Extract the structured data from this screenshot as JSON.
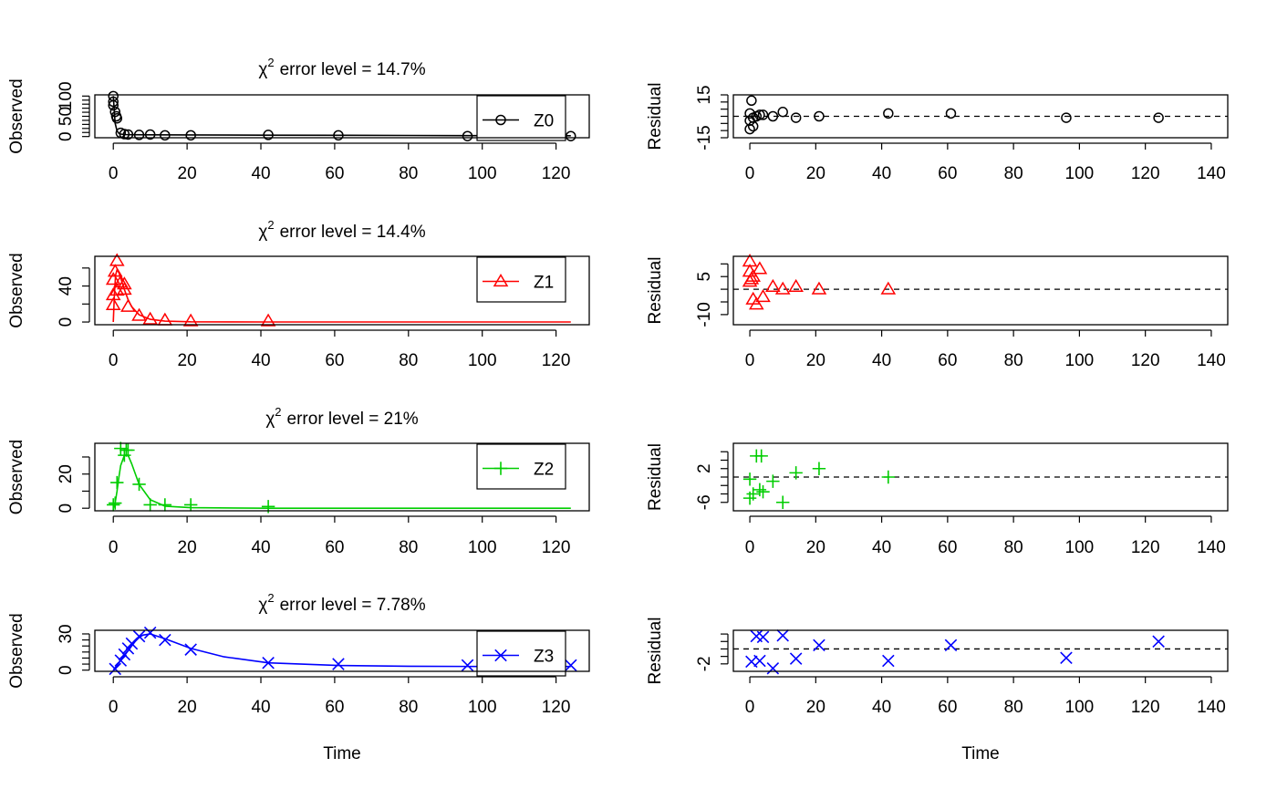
{
  "chart_data": [
    {
      "type": "scatter",
      "panel": "observed",
      "title_prefix": "χ",
      "title_exponent": "2",
      "title_text": "error level = 14.7%",
      "ylabel": "Observed",
      "xlabel": "",
      "xlim": [
        -5,
        129
      ],
      "ylim": [
        -3,
        103
      ],
      "xticks": [
        0,
        20,
        40,
        60,
        80,
        100,
        120
      ],
      "yticks_labeled": [
        0,
        50,
        100
      ],
      "yticks_minor": [
        10,
        20,
        30,
        40,
        60,
        70,
        80,
        90
      ],
      "legend": "Z0",
      "legend_position": "top-right",
      "color": "#000000",
      "marker": "circle",
      "series": [
        {
          "name": "Z0",
          "points": [
            [
              0,
              100
            ],
            [
              0,
              86
            ],
            [
              0,
              77
            ],
            [
              0.5,
              61
            ],
            [
              0.8,
              50
            ],
            [
              1,
              45
            ],
            [
              2,
              9
            ],
            [
              3,
              6
            ],
            [
              4,
              5
            ],
            [
              7,
              4
            ],
            [
              10,
              5
            ],
            [
              14,
              3
            ],
            [
              21,
              3
            ],
            [
              42,
              4
            ],
            [
              61,
              3
            ],
            [
              96,
              1
            ],
            [
              124,
              1
            ]
          ],
          "fit": [
            [
              0,
              100
            ],
            [
              0.5,
              33
            ],
            [
              1,
              14
            ],
            [
              1.5,
              8
            ],
            [
              2,
              6
            ],
            [
              3,
              5
            ],
            [
              5,
              4.5
            ],
            [
              10,
              4.2
            ],
            [
              20,
              3.9
            ],
            [
              40,
              3.4
            ],
            [
              60,
              3
            ],
            [
              80,
              2.6
            ],
            [
              100,
              2.3
            ],
            [
              124,
              2
            ]
          ]
        }
      ]
    },
    {
      "type": "scatter",
      "panel": "residual",
      "ylabel": "Residual",
      "xlabel": "",
      "xlim": [
        -5,
        145
      ],
      "ylim": [
        -15,
        15
      ],
      "xticks": [
        0,
        20,
        40,
        60,
        80,
        100,
        120,
        140
      ],
      "yticks_labeled": [
        -15,
        15
      ],
      "yticks_minor": [
        -10,
        -5,
        0,
        5,
        10
      ],
      "hline": 0,
      "color": "#000000",
      "marker": "circle",
      "series": [
        {
          "name": "Z0",
          "points": [
            [
              0,
              2
            ],
            [
              0,
              -3
            ],
            [
              0,
              -9
            ],
            [
              0.5,
              11
            ],
            [
              1,
              -7
            ],
            [
              1,
              -1
            ],
            [
              2,
              0
            ],
            [
              3,
              1
            ],
            [
              4,
              1
            ],
            [
              7,
              0
            ],
            [
              10,
              3
            ],
            [
              14,
              -1
            ],
            [
              21,
              0
            ],
            [
              42,
              2
            ],
            [
              61,
              2
            ],
            [
              96,
              -1
            ],
            [
              124,
              -1
            ]
          ]
        }
      ]
    },
    {
      "type": "scatter",
      "panel": "observed",
      "title_prefix": "χ",
      "title_exponent": "2",
      "title_text": "error level = 14.4%",
      "ylabel": "Observed",
      "xlabel": "",
      "xlim": [
        -5,
        129
      ],
      "ylim": [
        -3,
        73
      ],
      "xticks": [
        0,
        20,
        40,
        60,
        80,
        100,
        120
      ],
      "yticks_labeled": [
        0,
        40
      ],
      "yticks_minor": [
        20,
        60
      ],
      "legend": "Z1",
      "legend_position": "top-right",
      "color": "#ff0000",
      "marker": "triangle",
      "series": [
        {
          "name": "Z1",
          "points": [
            [
              0,
              19
            ],
            [
              0,
              30
            ],
            [
              0,
              47
            ],
            [
              0.5,
              56
            ],
            [
              1,
              35
            ],
            [
              1,
              68
            ],
            [
              2,
              44
            ],
            [
              3,
              36
            ],
            [
              3,
              42
            ],
            [
              4,
              17
            ],
            [
              7,
              7
            ],
            [
              10,
              3
            ],
            [
              14,
              2
            ],
            [
              21,
              1
            ],
            [
              42,
              1
            ]
          ],
          "fit": [
            [
              0,
              0
            ],
            [
              0.3,
              30
            ],
            [
              0.6,
              52
            ],
            [
              1,
              58
            ],
            [
              1.5,
              55
            ],
            [
              2,
              49
            ],
            [
              3,
              36
            ],
            [
              4,
              25
            ],
            [
              5,
              17
            ],
            [
              7,
              8
            ],
            [
              10,
              3
            ],
            [
              14,
              1
            ],
            [
              21,
              0.2
            ],
            [
              42,
              0
            ],
            [
              124,
              0
            ]
          ]
        }
      ]
    },
    {
      "type": "scatter",
      "panel": "residual",
      "ylabel": "Residual",
      "xlabel": "",
      "xlim": [
        -5,
        145
      ],
      "ylim": [
        -14,
        13
      ],
      "xticks": [
        0,
        20,
        40,
        60,
        80,
        100,
        120,
        140
      ],
      "yticks_labeled": [
        -10,
        5
      ],
      "yticks_minor": [
        -5,
        0,
        10
      ],
      "hline": 0,
      "color": "#ff0000",
      "marker": "triangle",
      "series": [
        {
          "name": "Z1",
          "points": [
            [
              0,
              11
            ],
            [
              0,
              7
            ],
            [
              0,
              3
            ],
            [
              0.5,
              4
            ],
            [
              1,
              -4
            ],
            [
              1,
              5
            ],
            [
              2,
              -6
            ],
            [
              3,
              8
            ],
            [
              4,
              -3
            ],
            [
              7,
              1
            ],
            [
              10,
              0
            ],
            [
              14,
              1
            ],
            [
              21,
              0
            ],
            [
              42,
              0
            ]
          ]
        }
      ]
    },
    {
      "type": "scatter",
      "panel": "observed",
      "title_prefix": "χ",
      "title_exponent": "2",
      "title_text": "error level = 21%",
      "ylabel": "Observed",
      "xlabel": "",
      "xlim": [
        -5,
        129
      ],
      "ylim": [
        -1.5,
        38
      ],
      "xticks": [
        0,
        20,
        40,
        60,
        80,
        100,
        120
      ],
      "yticks_labeled": [
        0,
        20
      ],
      "yticks_minor": [
        10,
        30
      ],
      "legend": "Z2",
      "legend_position": "top-right",
      "color": "#00cd00",
      "marker": "plus",
      "series": [
        {
          "name": "Z2",
          "points": [
            [
              0,
              2
            ],
            [
              0.5,
              3
            ],
            [
              1,
              15
            ],
            [
              2,
              35
            ],
            [
              3,
              31
            ],
            [
              3.5,
              34
            ],
            [
              4,
              34
            ],
            [
              7,
              14
            ],
            [
              10,
              2
            ],
            [
              14,
              2
            ],
            [
              21,
              2
            ],
            [
              42,
              1
            ]
          ],
          "fit": [
            [
              0,
              0
            ],
            [
              0.5,
              3
            ],
            [
              1,
              10
            ],
            [
              1.5,
              18
            ],
            [
              2,
              25
            ],
            [
              3,
              31
            ],
            [
              4,
              31
            ],
            [
              5,
              26
            ],
            [
              7,
              14
            ],
            [
              10,
              5
            ],
            [
              14,
              1.2
            ],
            [
              21,
              0.3
            ],
            [
              42,
              0
            ],
            [
              124,
              0
            ]
          ]
        }
      ]
    },
    {
      "type": "scatter",
      "panel": "residual",
      "ylabel": "Residual",
      "xlabel": "",
      "xlim": [
        -5,
        145
      ],
      "ylim": [
        -8,
        8
      ],
      "xticks": [
        0,
        20,
        40,
        60,
        80,
        100,
        120,
        140
      ],
      "yticks_labeled": [
        -6,
        2
      ],
      "yticks_minor": [
        -4,
        -2,
        0,
        4,
        6
      ],
      "hline": 0,
      "color": "#00cd00",
      "marker": "plus",
      "series": [
        {
          "name": "Z2",
          "points": [
            [
              0,
              -0.5
            ],
            [
              0,
              -5
            ],
            [
              1,
              -4
            ],
            [
              2,
              5
            ],
            [
              3,
              -3
            ],
            [
              3.5,
              5
            ],
            [
              4,
              -3.5
            ],
            [
              7,
              -1
            ],
            [
              10,
              -6
            ],
            [
              14,
              1
            ],
            [
              21,
              2
            ],
            [
              42,
              0
            ]
          ]
        }
      ]
    },
    {
      "type": "scatter",
      "panel": "observed",
      "title_prefix": "χ",
      "title_exponent": "2",
      "title_text": "error level = 7.78%",
      "ylabel": "Observed",
      "xlabel": "Time",
      "xlim": [
        -5,
        129
      ],
      "ylim": [
        -1,
        33
      ],
      "xticks": [
        0,
        20,
        40,
        60,
        80,
        100,
        120
      ],
      "yticks_labeled": [
        0,
        30
      ],
      "yticks_minor": [
        5,
        10,
        15,
        20,
        25
      ],
      "legend": "Z3",
      "legend_position": "top-right",
      "color": "#0000ff",
      "marker": "x",
      "series": [
        {
          "name": "Z3",
          "points": [
            [
              0.5,
              1
            ],
            [
              2,
              8
            ],
            [
              3,
              13
            ],
            [
              4,
              18
            ],
            [
              5,
              22
            ],
            [
              7,
              28
            ],
            [
              10,
              31
            ],
            [
              14,
              25
            ],
            [
              21,
              17
            ],
            [
              42,
              6
            ],
            [
              61,
              5
            ],
            [
              96,
              4
            ],
            [
              124,
              4
            ]
          ],
          "fit": [
            [
              0,
              0
            ],
            [
              1,
              4
            ],
            [
              2,
              8
            ],
            [
              3,
              12
            ],
            [
              4,
              16
            ],
            [
              5,
              20
            ],
            [
              6,
              24
            ],
            [
              7,
              27
            ],
            [
              8,
              29
            ],
            [
              10,
              30
            ],
            [
              12,
              28
            ],
            [
              14,
              26
            ],
            [
              21,
              18
            ],
            [
              30,
              11
            ],
            [
              42,
              6
            ],
            [
              61,
              3.8
            ],
            [
              80,
              3.2
            ],
            [
              100,
              3
            ],
            [
              124,
              3
            ]
          ]
        }
      ]
    },
    {
      "type": "scatter",
      "panel": "residual",
      "ylabel": "Residual",
      "xlabel": "Time",
      "xlim": [
        -5,
        145
      ],
      "ylim": [
        -3,
        2.5
      ],
      "xticks": [
        0,
        20,
        40,
        60,
        80,
        100,
        120,
        140
      ],
      "yticks_labeled": [
        -2
      ],
      "yticks_minor": [
        -1,
        0,
        1,
        2
      ],
      "hline": 0,
      "color": "#0000ff",
      "marker": "x",
      "series": [
        {
          "name": "Z3",
          "points": [
            [
              0.5,
              -1.7
            ],
            [
              2,
              1.7
            ],
            [
              3,
              -1.6
            ],
            [
              4,
              1.6
            ],
            [
              7,
              -2.6
            ],
            [
              10,
              1.8
            ],
            [
              14,
              -1.3
            ],
            [
              21,
              0.5
            ],
            [
              42,
              -1.6
            ],
            [
              61,
              0.5
            ],
            [
              96,
              -1.2
            ],
            [
              124,
              1
            ]
          ]
        }
      ]
    }
  ]
}
